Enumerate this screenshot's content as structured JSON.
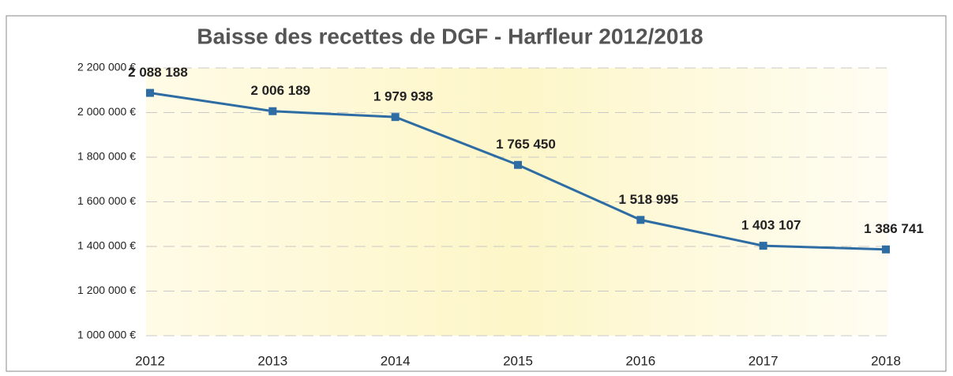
{
  "chart_data": {
    "type": "line",
    "title": "Baisse des recettes de DGF - Harfleur 2012/2018",
    "categories": [
      "2012",
      "2013",
      "2014",
      "2015",
      "2016",
      "2017",
      "2018"
    ],
    "values": [
      2088188,
      2006189,
      1979938,
      1765450,
      1518995,
      1403107,
      1386741
    ],
    "value_labels": [
      "2 088 188",
      "2 006 189",
      "1 979 938",
      "1 765 450",
      "1 518 995",
      "1 403 107",
      "1 386 741"
    ],
    "color": "#2e6ca4",
    "ylim": [
      1000000,
      2200000
    ],
    "yticks": [
      {
        "value": 1000000,
        "label": "1 000 000 €"
      },
      {
        "value": 1200000,
        "label": "1 200 000 €"
      },
      {
        "value": 1400000,
        "label": "1 400 000 €"
      },
      {
        "value": 1600000,
        "label": "1 600 000 €"
      },
      {
        "value": 1800000,
        "label": "1 800 000 €"
      },
      {
        "value": 2000000,
        "label": "2 000 000 €"
      },
      {
        "value": 2200000,
        "label": "2 200 000 €"
      }
    ],
    "grid": true
  }
}
